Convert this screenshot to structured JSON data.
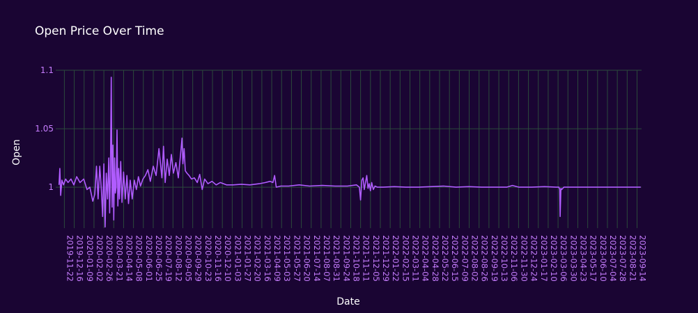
{
  "chart_data": {
    "type": "line",
    "title": "Open Price Over Time",
    "xlabel": "Date",
    "ylabel": "Open",
    "ylim": [
      0.965,
      1.1
    ],
    "yticks": [
      1,
      1.05,
      1.1
    ],
    "ytick_labels": [
      "1",
      "1.05",
      "1.1"
    ],
    "xlim": [
      "2019-11-01",
      "2023-09-25"
    ],
    "xtick_labels": [
      "2019-11-22",
      "2019-12-16",
      "2020-01-09",
      "2020-02-02",
      "2020-02-26",
      "2020-03-21",
      "2020-04-14",
      "2020-05-08",
      "2020-06-01",
      "2020-06-25",
      "2020-07-19",
      "2020-08-12",
      "2020-09-05",
      "2020-09-29",
      "2020-10-23",
      "2020-11-16",
      "2020-12-10",
      "2021-01-03",
      "2021-01-27",
      "2021-02-20",
      "2021-03-16",
      "2021-04-09",
      "2021-05-03",
      "2021-05-27",
      "2021-06-20",
      "2021-07-14",
      "2021-08-07",
      "2021-08-31",
      "2021-09-24",
      "2021-10-18",
      "2021-11-11",
      "2021-12-05",
      "2021-12-29",
      "2022-01-22",
      "2022-02-15",
      "2022-03-11",
      "2022-04-04",
      "2022-04-28",
      "2022-05-22",
      "2022-06-15",
      "2022-07-09",
      "2022-08-02",
      "2022-08-26",
      "2022-09-19",
      "2022-10-13",
      "2022-11-06",
      "2022-11-30",
      "2022-12-24",
      "2023-01-17",
      "2023-02-10",
      "2023-03-06",
      "2023-03-30",
      "2023-04-23",
      "2023-05-17",
      "2023-06-10",
      "2023-07-04",
      "2023-07-28",
      "2023-08-21",
      "2023-09-14"
    ],
    "grid": true,
    "colors": {
      "background": "#1a0533",
      "grid": "#2c4a3c",
      "line": "#b05cff",
      "tick": "#c77dff",
      "text": "#ffffff"
    },
    "series": [
      {
        "x": [
          "2019-11-09",
          "2019-11-11",
          "2019-11-13",
          "2019-11-16",
          "2019-11-20",
          "2019-11-25",
          "2019-12-01",
          "2019-12-08",
          "2019-12-15",
          "2019-12-22",
          "2019-12-30",
          "2020-01-08",
          "2020-01-16",
          "2020-01-23",
          "2020-01-30",
          "2020-02-04",
          "2020-02-08",
          "2020-02-12",
          "2020-02-16",
          "2020-02-20",
          "2020-02-23",
          "2020-02-26",
          "2020-02-29",
          "2020-03-03",
          "2020-03-06",
          "2020-03-09",
          "2020-03-11",
          "2020-03-13",
          "2020-03-15",
          "2020-03-17",
          "2020-03-19",
          "2020-03-21",
          "2020-03-23",
          "2020-03-25",
          "2020-03-27",
          "2020-03-29",
          "2020-03-31",
          "2020-04-02",
          "2020-04-04",
          "2020-04-07",
          "2020-04-10",
          "2020-04-14",
          "2020-04-18",
          "2020-04-22",
          "2020-04-26",
          "2020-04-30",
          "2020-05-05",
          "2020-05-10",
          "2020-05-15",
          "2020-05-20",
          "2020-05-25",
          "2020-05-31",
          "2020-06-06",
          "2020-06-12",
          "2020-06-18",
          "2020-06-25",
          "2020-07-02",
          "2020-07-09",
          "2020-07-16",
          "2020-07-20",
          "2020-07-24",
          "2020-07-29",
          "2020-08-03",
          "2020-08-08",
          "2020-08-13",
          "2020-08-19",
          "2020-08-25",
          "2020-08-31",
          "2020-09-03",
          "2020-09-05",
          "2020-09-08",
          "2020-09-11",
          "2020-09-15",
          "2020-09-20",
          "2020-09-26",
          "2020-10-03",
          "2020-10-10",
          "2020-10-16",
          "2020-10-22",
          "2020-10-28",
          "2020-11-05",
          "2020-11-15",
          "2020-11-25",
          "2020-12-05",
          "2020-12-20",
          "2021-01-05",
          "2021-01-25",
          "2021-02-15",
          "2021-03-10",
          "2021-03-25",
          "2021-04-05",
          "2021-04-12",
          "2021-04-16",
          "2021-04-20",
          "2021-05-01",
          "2021-05-20",
          "2021-06-15",
          "2021-07-10",
          "2021-08-10",
          "2021-09-10",
          "2021-10-10",
          "2021-11-01",
          "2021-11-08",
          "2021-11-11",
          "2021-11-14",
          "2021-11-17",
          "2021-11-20",
          "2021-11-23",
          "2021-11-26",
          "2021-11-29",
          "2021-12-02",
          "2021-12-05",
          "2021-12-08",
          "2021-12-12",
          "2021-12-16",
          "2021-12-22",
          "2022-01-05",
          "2022-02-01",
          "2022-03-01",
          "2022-04-01",
          "2022-05-01",
          "2022-06-01",
          "2022-07-01",
          "2022-08-01",
          "2022-09-01",
          "2022-10-01",
          "2022-11-01",
          "2022-11-15",
          "2022-12-01",
          "2023-01-01",
          "2023-02-01",
          "2023-03-01",
          "2023-03-08",
          "2023-03-10",
          "2023-03-11",
          "2023-03-13",
          "2023-03-15",
          "2023-03-20",
          "2023-04-10",
          "2023-05-10",
          "2023-06-10",
          "2023-07-10",
          "2023-08-10",
          "2023-09-10",
          "2023-09-23"
        ],
        "y": [
          1.002,
          1.016,
          0.993,
          1.006,
          1.002,
          1.007,
          1.004,
          1.007,
          1.002,
          1.009,
          1.004,
          1.007,
          0.998,
          1.0,
          0.988,
          0.994,
          1.018,
          0.99,
          1.018,
          0.997,
          0.975,
          1.02,
          0.966,
          1.012,
          0.99,
          1.025,
          0.978,
          1.01,
          1.094,
          0.983,
          1.036,
          0.972,
          1.025,
          0.995,
          1.0,
          1.049,
          0.984,
          1.016,
          0.99,
          1.022,
          0.987,
          1.013,
          0.99,
          1.01,
          0.986,
          1.006,
          0.99,
          1.006,
          0.998,
          1.009,
          1.001,
          1.007,
          1.01,
          1.015,
          1.005,
          1.018,
          1.01,
          1.033,
          1.008,
          1.035,
          1.004,
          1.024,
          1.01,
          1.028,
          1.012,
          1.021,
          1.008,
          1.03,
          1.042,
          1.02,
          1.033,
          1.014,
          1.012,
          1.01,
          1.007,
          1.008,
          1.004,
          1.011,
          0.998,
          1.007,
          1.003,
          1.005,
          1.002,
          1.004,
          1.002,
          1.002,
          1.0025,
          1.002,
          1.003,
          1.004,
          1.005,
          1.004,
          1.01,
          1.0,
          1.001,
          1.001,
          1.002,
          1.001,
          1.0015,
          1.001,
          1.001,
          1.002,
          1.0,
          0.989,
          1.006,
          1.008,
          0.998,
          1.004,
          1.01,
          0.999,
          1.003,
          0.997,
          1.004,
          0.998,
          1.001,
          1.0,
          1.0,
          1.0005,
          1.0,
          1.0,
          1.0005,
          1.001,
          1.0,
          1.0005,
          1.0,
          1.0,
          1.0,
          1.0015,
          1.0,
          1.0,
          1.0005,
          1.0,
          1.0,
          0.998,
          0.975,
          0.999,
          0.998,
          1.0,
          1.0,
          1.0,
          1.0,
          1.0,
          1.0,
          1.0,
          1.0
        ]
      }
    ]
  }
}
